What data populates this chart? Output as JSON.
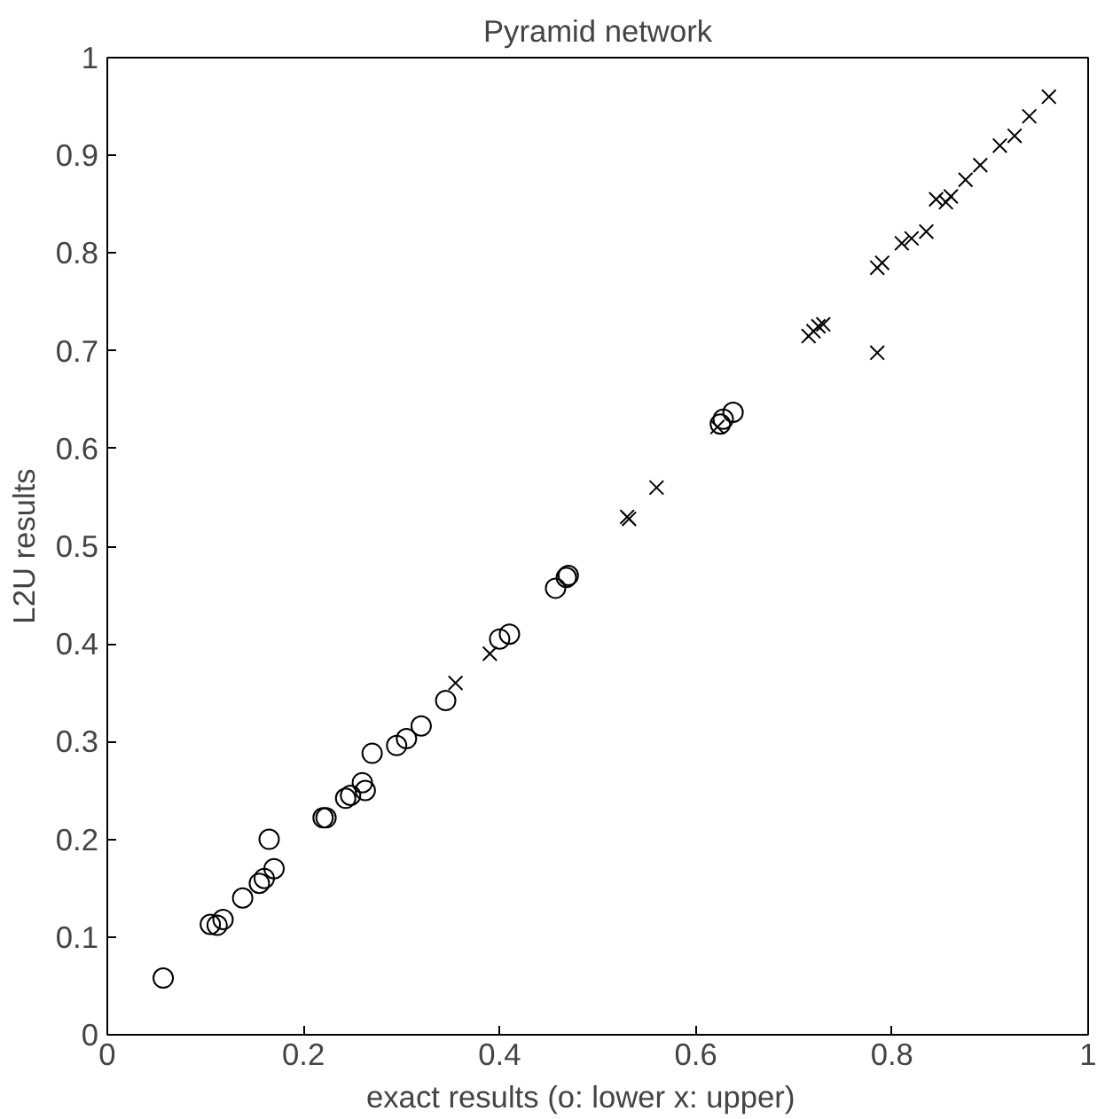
{
  "chart_data": {
    "type": "scatter",
    "title": "Pyramid network",
    "xlabel": "exact results   (o: lower   x: upper)",
    "ylabel": "L2U results",
    "xlim": [
      0,
      1
    ],
    "ylim": [
      0,
      1
    ],
    "xticks": [
      0,
      0.2,
      0.4,
      0.6,
      0.8,
      1
    ],
    "yticks": [
      0,
      0.1,
      0.2,
      0.3,
      0.4,
      0.5,
      0.6,
      0.7,
      0.8,
      0.9,
      1
    ],
    "grid": false,
    "series": [
      {
        "color": "#000000",
        "marker": "circle",
        "x": [
          0.057,
          0.105,
          0.112,
          0.118,
          0.138,
          0.155,
          0.16,
          0.165,
          0.17,
          0.22,
          0.223,
          0.243,
          0.248,
          0.26,
          0.263,
          0.27,
          0.295,
          0.305,
          0.32,
          0.345,
          0.4,
          0.41,
          0.457,
          0.468,
          0.47,
          0.625,
          0.628,
          0.638
        ],
        "values": [
          0.058,
          0.113,
          0.112,
          0.118,
          0.14,
          0.155,
          0.16,
          0.2,
          0.17,
          0.222,
          0.222,
          0.242,
          0.245,
          0.258,
          0.25,
          0.288,
          0.296,
          0.303,
          0.316,
          0.342,
          0.405,
          0.41,
          0.457,
          0.468,
          0.47,
          0.625,
          0.63,
          0.637
        ]
      },
      {
        "color": "#000000",
        "marker": "cross",
        "x": [
          0.355,
          0.39,
          0.53,
          0.532,
          0.56,
          0.622,
          0.715,
          0.72,
          0.725,
          0.73,
          0.785,
          0.79,
          0.785,
          0.81,
          0.82,
          0.835,
          0.845,
          0.855,
          0.86,
          0.875,
          0.89,
          0.91,
          0.925,
          0.94,
          0.96
        ],
        "values": [
          0.36,
          0.39,
          0.53,
          0.528,
          0.56,
          0.622,
          0.715,
          0.72,
          0.725,
          0.727,
          0.785,
          0.79,
          0.698,
          0.81,
          0.815,
          0.822,
          0.855,
          0.852,
          0.858,
          0.875,
          0.89,
          0.91,
          0.92,
          0.94,
          0.96
        ]
      }
    ]
  }
}
